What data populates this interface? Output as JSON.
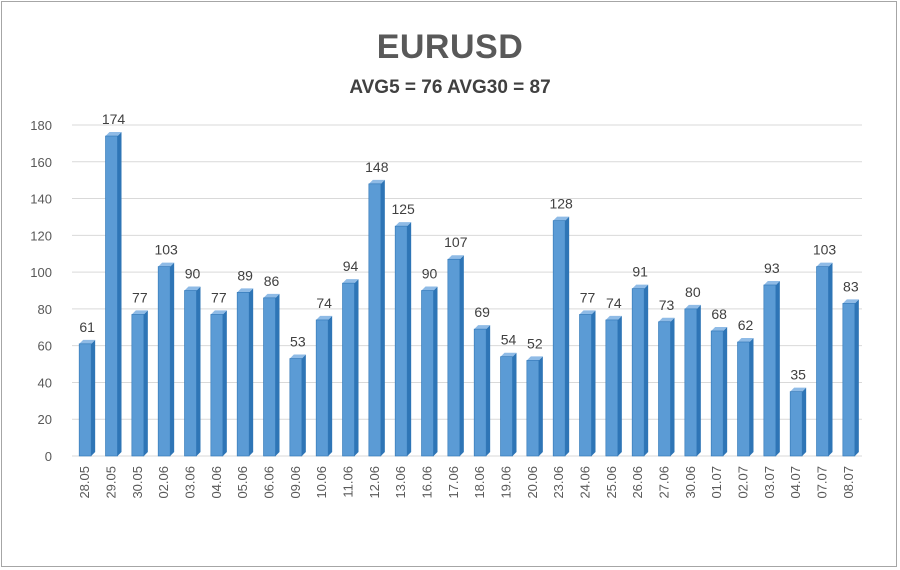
{
  "chart_data": {
    "type": "bar",
    "title": "EURUSD",
    "subtitle": "AVG5 = 76 AVG30 = 87",
    "categories": [
      "28.05",
      "29.05",
      "30.05",
      "02.06",
      "03.06",
      "04.06",
      "05.06",
      "06.06",
      "09.06",
      "10.06",
      "11.06",
      "12.06",
      "13.06",
      "16.06",
      "17.06",
      "18.06",
      "19.06",
      "20.06",
      "23.06",
      "24.06",
      "25.06",
      "26.06",
      "27.06",
      "30.06",
      "01.07",
      "02.07",
      "03.07",
      "04.07",
      "07.07",
      "08.07"
    ],
    "values": [
      61,
      174,
      77,
      103,
      90,
      77,
      89,
      86,
      53,
      74,
      94,
      148,
      125,
      90,
      107,
      69,
      54,
      52,
      128,
      77,
      74,
      91,
      73,
      80,
      68,
      62,
      93,
      35,
      103,
      83
    ],
    "ylim": [
      0,
      180
    ],
    "yticks": [
      0,
      20,
      40,
      60,
      80,
      100,
      120,
      140,
      160,
      180
    ],
    "xlabel": "",
    "ylabel": "",
    "grid": true,
    "colors": {
      "bar": "#5b9bd5",
      "bar_dark": "#2e75b6",
      "bar_light": "#8fbbe6",
      "grid": "#d9d9d9"
    }
  }
}
